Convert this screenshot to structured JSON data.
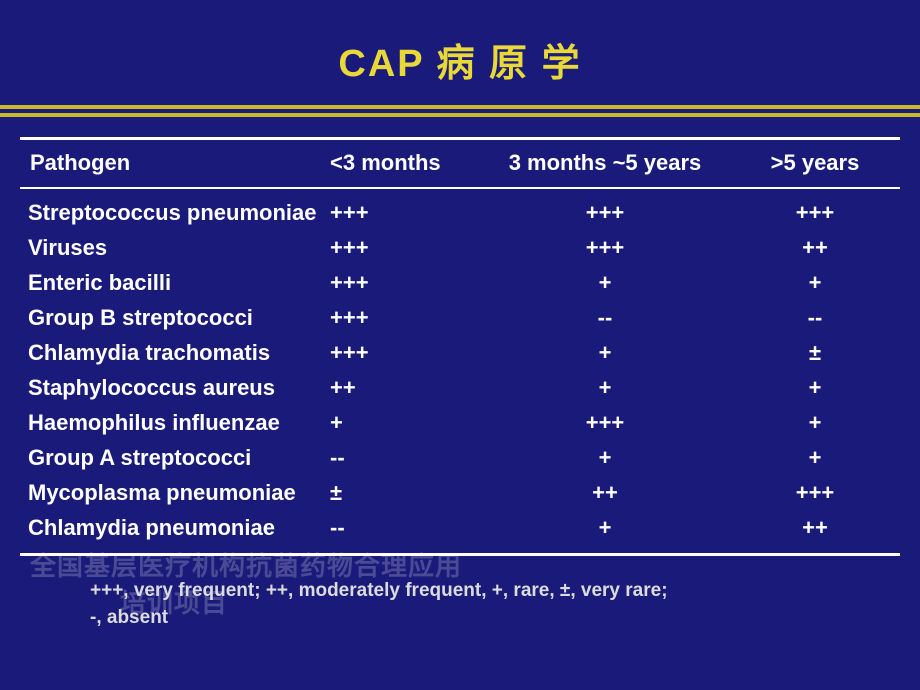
{
  "title": "CAP 病 原 学",
  "colors": {
    "background": "#1a1a7a",
    "title": "#e8d838",
    "divider": "#c9b828",
    "text": "#ffffff",
    "legend": "#dcdcdc",
    "watermark": "#4a4a95"
  },
  "table": {
    "headers": {
      "pathogen": "Pathogen",
      "col_a": "<3 months",
      "col_b": "3 months  ~5 years",
      "col_c": ">5 years"
    },
    "rows": [
      {
        "pathogen": "Streptococcus pneumoniae",
        "a": "+++",
        "b": "+++",
        "c": "+++"
      },
      {
        "pathogen": "Viruses",
        "a": "+++",
        "b": "+++",
        "c": "++"
      },
      {
        "pathogen": "Enteric bacilli",
        "a": "+++",
        "b": "+",
        "c": "+"
      },
      {
        "pathogen": "Group B streptococci",
        "a": "+++",
        "b": "--",
        "c": "--"
      },
      {
        "pathogen": "Chlamydia trachomatis",
        "a": "+++",
        "b": "+",
        "c": "±"
      },
      {
        "pathogen": "Staphylococcus aureus",
        "a": "++",
        "b": "+",
        "c": "+"
      },
      {
        "pathogen": "Haemophilus influenzae",
        "a": "+",
        "b": "+++",
        "c": "+"
      },
      {
        "pathogen": "Group A streptococci",
        "a": "--",
        "b": "+",
        "c": "+"
      },
      {
        "pathogen": "Mycoplasma pneumoniae",
        "a": "±",
        "b": "++",
        "c": "+++"
      },
      {
        "pathogen": "Chlamydia pneumoniae",
        "a": "--",
        "b": "+",
        "c": "++"
      }
    ]
  },
  "legend": {
    "line1": "+++, very frequent;  ++, moderately frequent,  +, rare, ±, very rare;",
    "line2": "-, absent"
  },
  "watermark": {
    "line1": "全国基层医疗机构抗菌药物合理应用",
    "line2": "培训项目"
  },
  "fontsize": {
    "title": 38,
    "table": 22,
    "legend": 19
  }
}
